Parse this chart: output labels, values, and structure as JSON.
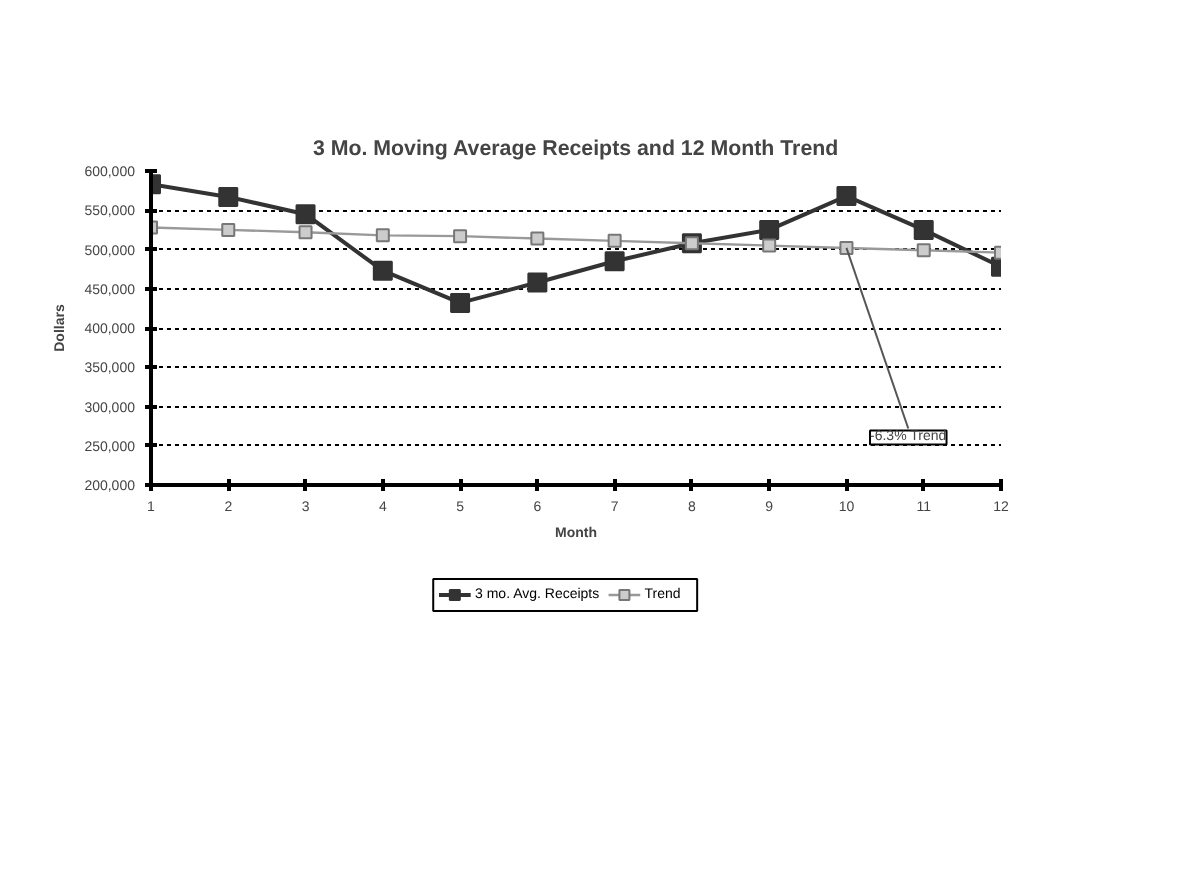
{
  "chart_data": {
    "type": "line",
    "title": "3 Mo. Moving Average Receipts and 12 Month Trend",
    "xlabel": "Month",
    "ylabel": "Dollars",
    "x": [
      1,
      2,
      3,
      4,
      5,
      6,
      7,
      8,
      9,
      10,
      11,
      12
    ],
    "series": [
      {
        "name": "3 mo. Avg. Receipts",
        "color": "#333333",
        "values": [
          583000,
          567000,
          545000,
          473000,
          432000,
          458000,
          485000,
          508000,
          525000,
          568000,
          525000,
          478000
        ]
      },
      {
        "name": "Trend",
        "color": "#999999",
        "values": [
          528000,
          525000,
          522000,
          518000,
          517000,
          514000,
          511000,
          508000,
          505000,
          502000,
          499000,
          496000
        ]
      }
    ],
    "xlim": [
      1,
      12
    ],
    "xticks": [
      1,
      2,
      3,
      4,
      5,
      6,
      7,
      8,
      9,
      10,
      11,
      12
    ],
    "ylim": [
      200000,
      600000
    ],
    "yticks": [
      {
        "value": 200000,
        "label": "200,000"
      },
      {
        "value": 250000,
        "label": "250,000"
      },
      {
        "value": 300000,
        "label": "300,000"
      },
      {
        "value": 350000,
        "label": "350,000"
      },
      {
        "value": 400000,
        "label": "400,000"
      },
      {
        "value": 450000,
        "label": "450,000"
      },
      {
        "value": 500000,
        "label": "500,000"
      },
      {
        "value": 550000,
        "label": "550,000"
      },
      {
        "value": 600000,
        "label": "600,000"
      }
    ],
    "grid": "y",
    "legend": "bottom",
    "marker": "square",
    "line_style": "solid",
    "annotations": [
      {
        "text": "-6.3% Trend",
        "x": 10,
        "y": 502000
      }
    ]
  }
}
